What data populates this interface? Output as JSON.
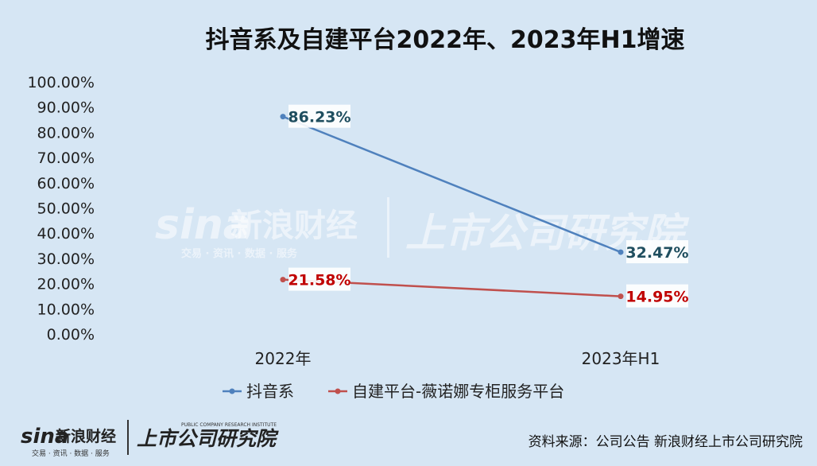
{
  "chart_data": {
    "type": "line",
    "title": "抖音系及自建平台2022年、2023年H1增速",
    "categories": [
      "2022年",
      "2023年H1"
    ],
    "series": [
      {
        "name": "抖音系",
        "values": [
          86.23,
          32.47
        ],
        "labels": [
          "86.23%",
          "32.47%"
        ],
        "color": "#4f81bd",
        "label_color": "#1f4e5f"
      },
      {
        "name": "自建平台-薇诺娜专柜服务平台",
        "values": [
          21.58,
          14.95
        ],
        "labels": [
          "21.58%",
          "14.95%"
        ],
        "color": "#c0504d",
        "label_color": "#c00000"
      }
    ],
    "ylim": [
      0,
      100
    ],
    "y_ticks": [
      0,
      10,
      20,
      30,
      40,
      50,
      60,
      70,
      80,
      90,
      100
    ],
    "y_tick_labels": [
      "0.00%",
      "10.00%",
      "20.00%",
      "30.00%",
      "40.00%",
      "50.00%",
      "60.00%",
      "70.00%",
      "80.00%",
      "90.00%",
      "100.00%"
    ],
    "legend_position": "bottom",
    "grid": false
  },
  "source": "资料来源：公司公告 新浪财经上市公司研究院",
  "watermark": {
    "brand": "sina",
    "brand_cn": "新浪财经",
    "tagline": "交易 · 资讯 · 数据 · 服务",
    "institute": "上市公司研究院"
  },
  "logo": {
    "brand": "sina",
    "brand_cn": "新浪财经",
    "tagline": "交易 · 资讯 · 数据 · 服务",
    "institute": "上市公司研究院",
    "institute_en": "PUBLIC COMPANY RESEARCH INSTITUTE"
  }
}
